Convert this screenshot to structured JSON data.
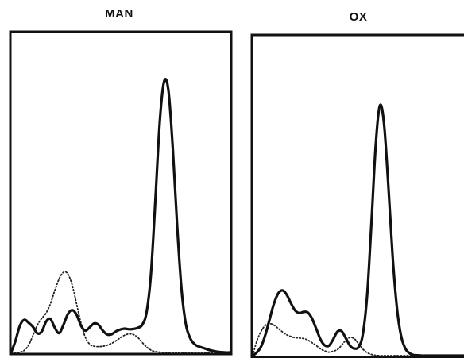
{
  "chart_data": [
    {
      "type": "line",
      "title": "MAN",
      "xlabel": "",
      "ylabel": "",
      "axis_ticks": "none",
      "x": [
        0.0,
        0.02,
        0.04,
        0.06,
        0.08,
        0.1,
        0.12,
        0.14,
        0.16,
        0.18,
        0.2,
        0.22,
        0.24,
        0.26,
        0.28,
        0.3,
        0.32,
        0.34,
        0.36,
        0.38,
        0.4,
        0.42,
        0.44,
        0.46,
        0.48,
        0.5,
        0.52,
        0.54,
        0.56,
        0.58,
        0.6,
        0.62,
        0.64,
        0.66,
        0.68,
        0.7,
        0.72,
        0.74,
        0.76,
        0.78,
        0.8,
        0.82,
        0.84,
        0.86,
        0.88,
        0.9,
        0.92,
        0.94,
        0.96,
        0.98,
        1.0
      ],
      "series": [
        {
          "style": "solid",
          "values": [
            0.0,
            0.04,
            0.091,
            0.111,
            0.101,
            0.087,
            0.065,
            0.071,
            0.105,
            0.114,
            0.084,
            0.066,
            0.095,
            0.131,
            0.144,
            0.128,
            0.091,
            0.074,
            0.086,
            0.099,
            0.094,
            0.074,
            0.061,
            0.062,
            0.072,
            0.078,
            0.081,
            0.079,
            0.08,
            0.084,
            0.094,
            0.137,
            0.267,
            0.516,
            0.782,
            0.922,
            0.892,
            0.694,
            0.43,
            0.214,
            0.095,
            0.048,
            0.028,
            0.02,
            0.015,
            0.01,
            0.006,
            0.003,
            0.001,
            0.0,
            0.0
          ]
        },
        {
          "style": "dotted",
          "values": [
            0.0,
            0.0,
            0.001,
            0.007,
            0.025,
            0.058,
            0.093,
            0.116,
            0.134,
            0.166,
            0.211,
            0.251,
            0.273,
            0.267,
            0.228,
            0.164,
            0.099,
            0.051,
            0.028,
            0.021,
            0.02,
            0.021,
            0.025,
            0.031,
            0.04,
            0.05,
            0.059,
            0.063,
            0.061,
            0.051,
            0.034,
            0.019,
            0.008,
            0.003,
            0.001,
            0.0,
            0.0,
            0.0,
            0.0,
            0.0,
            0.0,
            0.0,
            0.0,
            0.0,
            0.0,
            0.0,
            0.0,
            0.0,
            0.0,
            0.0,
            0.0
          ]
        }
      ],
      "ylim": [
        0,
        1
      ]
    },
    {
      "type": "line",
      "title": "OX",
      "xlabel": "",
      "ylabel": "",
      "axis_ticks": "none",
      "x": [
        0.0,
        0.02,
        0.04,
        0.06,
        0.08,
        0.1,
        0.12,
        0.14,
        0.16,
        0.18,
        0.2,
        0.22,
        0.24,
        0.26,
        0.28,
        0.3,
        0.32,
        0.34,
        0.36,
        0.38,
        0.4,
        0.42,
        0.44,
        0.46,
        0.48,
        0.5,
        0.52,
        0.54,
        0.56,
        0.58,
        0.6,
        0.62,
        0.64,
        0.66,
        0.68,
        0.7,
        0.72,
        0.74,
        0.76,
        0.78,
        0.8,
        0.82,
        0.84,
        0.86,
        0.88,
        0.9,
        0.92,
        0.94,
        0.96,
        0.98,
        1.0
      ],
      "series": [
        {
          "style": "solid",
          "values": [
            0.0,
            0.011,
            0.031,
            0.071,
            0.124,
            0.176,
            0.211,
            0.222,
            0.208,
            0.179,
            0.154,
            0.145,
            0.149,
            0.147,
            0.126,
            0.091,
            0.055,
            0.035,
            0.034,
            0.056,
            0.082,
            0.083,
            0.058,
            0.033,
            0.024,
            0.03,
            0.075,
            0.209,
            0.452,
            0.716,
            0.852,
            0.785,
            0.573,
            0.337,
            0.163,
            0.066,
            0.024,
            0.008,
            0.002,
            0.001,
            0.0,
            0.0,
            0.0,
            0.0,
            0.0,
            0.0,
            0.0,
            0.0,
            0.0,
            0.0,
            0.0
          ]
        },
        {
          "style": "dotted",
          "values": [
            0.0,
            0.05,
            0.083,
            0.103,
            0.109,
            0.104,
            0.093,
            0.081,
            0.071,
            0.065,
            0.061,
            0.06,
            0.058,
            0.053,
            0.044,
            0.034,
            0.023,
            0.016,
            0.012,
            0.015,
            0.021,
            0.036,
            0.053,
            0.062,
            0.057,
            0.04,
            0.022,
            0.01,
            0.004,
            0.001,
            0.0,
            0.0,
            0.0,
            0.0,
            0.0,
            0.0,
            0.0,
            0.0,
            0.0,
            0.0,
            0.0,
            0.0,
            0.0,
            0.0,
            0.0,
            0.0,
            0.0,
            0.0,
            0.0,
            0.0,
            0.0
          ]
        }
      ],
      "ylim": [
        0,
        1
      ]
    }
  ]
}
